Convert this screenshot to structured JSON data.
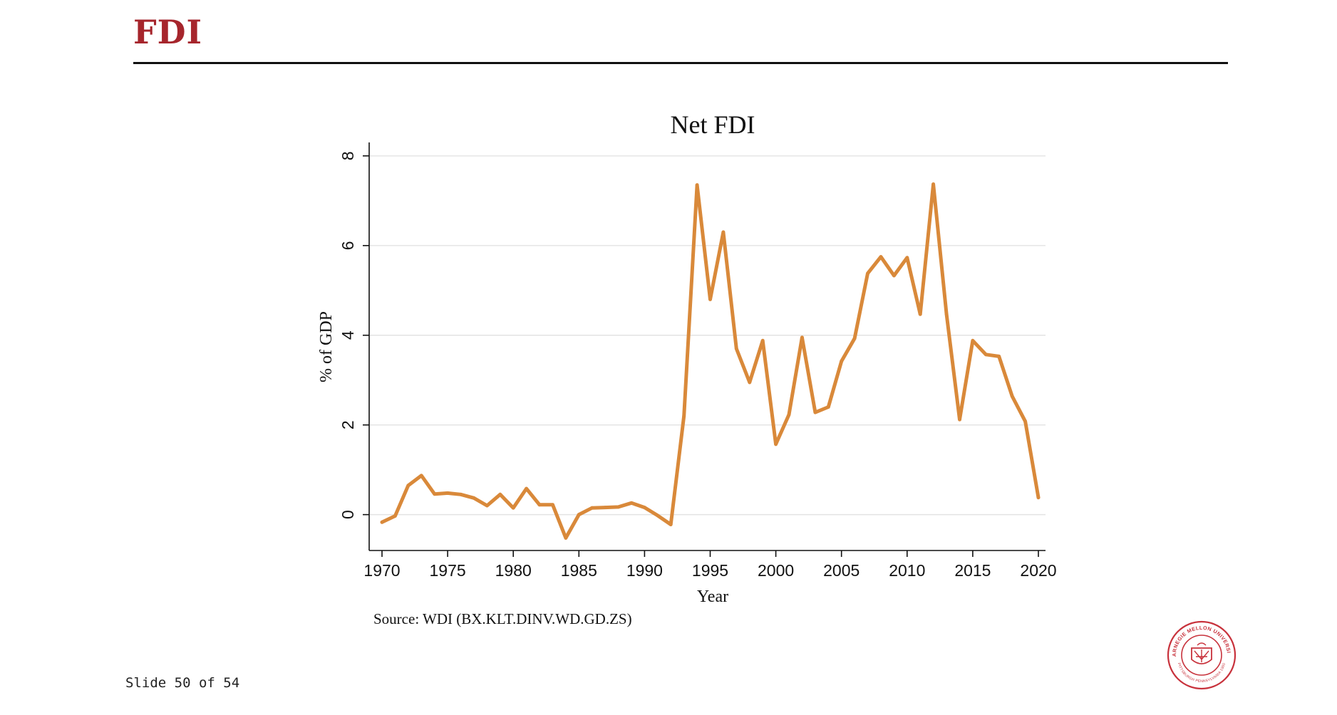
{
  "slide": {
    "title": "FDI",
    "footer": "Slide 50 of 54",
    "accent_color": "#a6252c",
    "logo": {
      "name": "carnegie-mellon-seal",
      "ring_text": "CARNEGIE MELLON UNIVERSITY",
      "bottom_text": "PITTSBURGH PENNSYLVANIA 1900"
    }
  },
  "chart_data": {
    "type": "line",
    "title": "Net FDI",
    "xlabel": "Year",
    "ylabel": "% of GDP",
    "note": "Source: WDI (BX.KLT.DINV.WD.GD.ZS)",
    "xlim": [
      1970,
      2020
    ],
    "ylim": [
      -0.8,
      8.3
    ],
    "xticks": [
      1970,
      1975,
      1980,
      1985,
      1990,
      1995,
      2000,
      2005,
      2010,
      2015,
      2020
    ],
    "yticks": [
      0,
      2,
      4,
      6,
      8
    ],
    "grid": "horizontal",
    "line_color": "#d9893a",
    "series": [
      {
        "x": [
          1970,
          1971,
          1972,
          1973,
          1974,
          1975,
          1976,
          1977,
          1978,
          1979,
          1980,
          1981,
          1982,
          1983,
          1984,
          1985,
          1986,
          1987,
          1988,
          1989,
          1990,
          1991,
          1992,
          1993,
          1994,
          1995,
          1996,
          1997,
          1998,
          1999,
          2000,
          2001,
          2002,
          2003,
          2004,
          2005,
          2006,
          2007,
          2008,
          2009,
          2010,
          2011,
          2012,
          2013,
          2014,
          2015,
          2016,
          2017,
          2018,
          2019,
          2020
        ],
        "values": [
          -0.17,
          -0.03,
          0.65,
          0.87,
          0.46,
          0.48,
          0.45,
          0.37,
          0.2,
          0.45,
          0.15,
          0.58,
          0.22,
          0.22,
          -0.52,
          0.0,
          0.15,
          0.16,
          0.17,
          0.26,
          0.16,
          -0.02,
          -0.22,
          2.2,
          7.35,
          4.8,
          6.3,
          3.7,
          2.95,
          3.88,
          1.57,
          2.23,
          3.95,
          2.28,
          2.4,
          3.42,
          3.93,
          5.38,
          5.75,
          5.33,
          5.73,
          4.47,
          7.37,
          4.47,
          2.12,
          3.88,
          3.57,
          3.53,
          2.64,
          2.08,
          0.38
        ]
      }
    ]
  }
}
